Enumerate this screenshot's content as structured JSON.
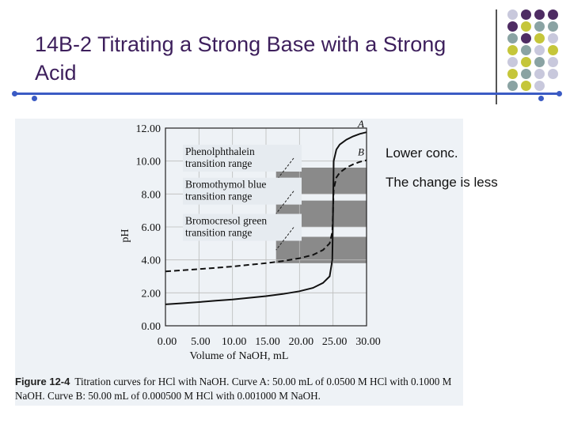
{
  "slide": {
    "title": "14B-2 Titrating a Strong Base with a Strong Acid",
    "notes": [
      "Lower conc.",
      "The change is less"
    ]
  },
  "figure": {
    "caption_label": "Figure 12-4",
    "caption_text": "Titration curves for HCl with NaOH. Curve A: 50.00 mL of 0.0500 M HCl with 0.1000 M NaOH. Curve B: 50.00 mL of 0.000500 M HCl with 0.001000 M NaOH."
  },
  "chart_data": {
    "type": "line",
    "xlabel": "Volume of NaOH, mL",
    "ylabel": "pH",
    "xlim": [
      0,
      30
    ],
    "ylim": [
      0,
      12
    ],
    "x_ticks": [
      "0.00",
      "5.00",
      "10.00",
      "15.00",
      "20.00",
      "25.00",
      "30.00"
    ],
    "y_ticks": [
      "0.00",
      "2.00",
      "4.00",
      "6.00",
      "8.00",
      "10.00",
      "12.00"
    ],
    "grid": true,
    "series": [
      {
        "name": "A",
        "style": "solid",
        "x": [
          0,
          2.5,
          5,
          7.5,
          10,
          12.5,
          15,
          17.5,
          20,
          22,
          23.5,
          24.5,
          24.9,
          25,
          25.1,
          25.5,
          26,
          27,
          28,
          29,
          30
        ],
        "y": [
          1.3,
          1.37,
          1.44,
          1.52,
          1.6,
          1.7,
          1.8,
          1.93,
          2.1,
          2.3,
          2.6,
          3.0,
          4.0,
          7.0,
          10.0,
          10.7,
          11.0,
          11.3,
          11.5,
          11.65,
          11.75
        ]
      },
      {
        "name": "B",
        "style": "dashed",
        "x": [
          0,
          2.5,
          5,
          7.5,
          10,
          12.5,
          15,
          17.5,
          20,
          22,
          23.5,
          24.5,
          24.9,
          25,
          25.1,
          25.5,
          26,
          27,
          28,
          29,
          30
        ],
        "y": [
          3.3,
          3.37,
          3.44,
          3.52,
          3.6,
          3.7,
          3.8,
          3.93,
          4.1,
          4.3,
          4.6,
          5.0,
          5.7,
          7.0,
          8.3,
          9.0,
          9.3,
          9.6,
          9.8,
          9.95,
          10.05
        ]
      }
    ],
    "bands": [
      {
        "label_lines": [
          "Phenolphthalein",
          "transition range"
        ],
        "range": [
          8.0,
          9.6
        ]
      },
      {
        "label_lines": [
          "Bromothymol blue",
          "transition range"
        ],
        "range": [
          6.0,
          7.6
        ]
      },
      {
        "label_lines": [
          "Bromocresol green",
          "transition range"
        ],
        "range": [
          3.8,
          5.4
        ]
      }
    ]
  },
  "colors": {
    "title": "#3d1f5c",
    "rule": "#3b5bc4",
    "band": "#8a8a8a",
    "figure_bg": "#eef2f6",
    "deco_purple": "#4e2c63",
    "deco_teal": "#8aa3a3",
    "deco_olive": "#c5c63a",
    "deco_lavender": "#c8c8dc"
  }
}
